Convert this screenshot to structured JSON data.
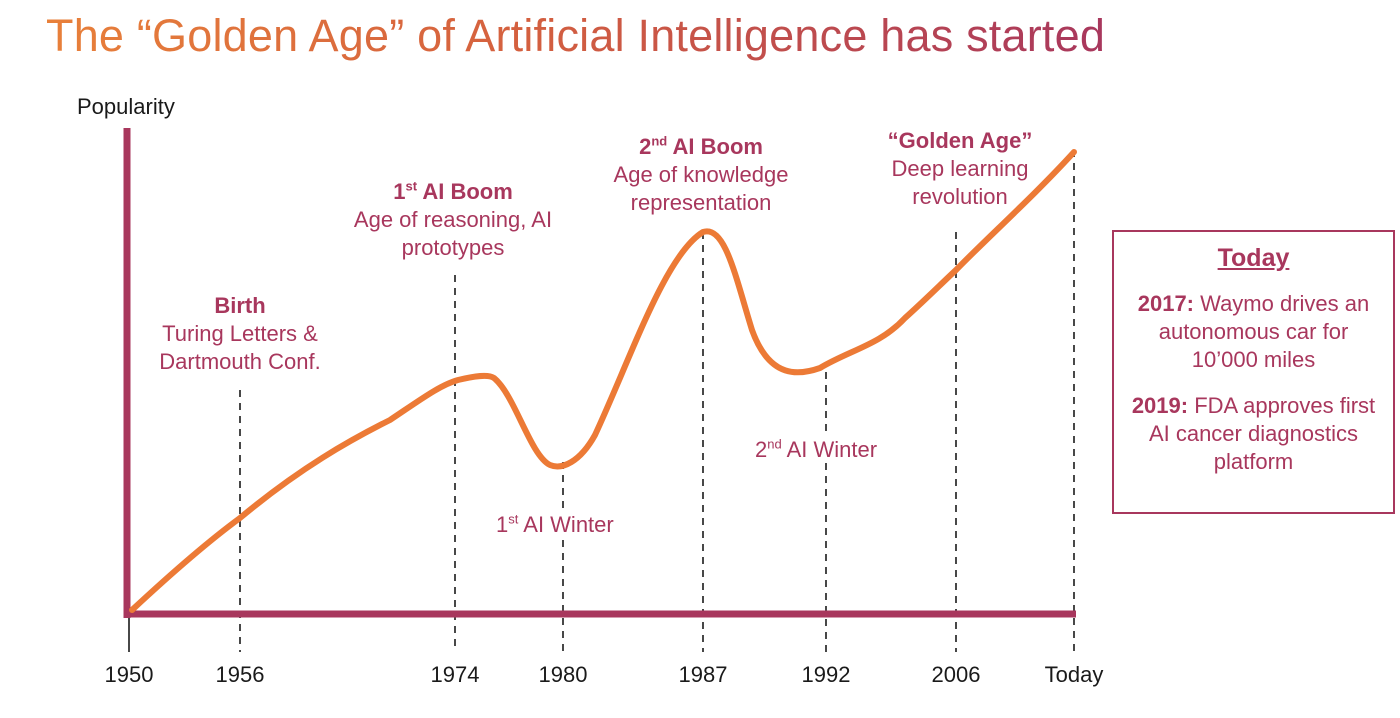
{
  "title": "The “Golden Age” of Artificial Intelligence has started",
  "ylabel": "Popularity",
  "xticks": [
    "1950",
    "1956",
    "1974",
    "1980",
    "1987",
    "1992",
    "2006",
    "Today"
  ],
  "annotations": {
    "birth": {
      "heading": "Birth",
      "line1": "Turing Letters &",
      "line2": "Dartmouth Conf."
    },
    "boom1": {
      "num": "1",
      "sup": "st",
      "heading": " AI Boom",
      "line1": "Age of reasoning, AI",
      "line2": "prototypes"
    },
    "boom2": {
      "num": "2",
      "sup": "nd",
      "heading": " AI Boom",
      "line1": "Age of knowledge",
      "line2": "representation"
    },
    "golden": {
      "heading": "“Golden Age”",
      "line1": "Deep learning",
      "line2": "revolution"
    }
  },
  "winters": {
    "winter1": {
      "num": "1",
      "sup": "st",
      "text": " AI Winter"
    },
    "winter2": {
      "num": "2",
      "sup": "nd",
      "text": " AI Winter"
    }
  },
  "today_box": {
    "heading": "Today",
    "item1_year": "2017:",
    "item1_text": " Waymo drives an autonomous car for 10’000 miles",
    "item2_year": "2019:",
    "item2_text": " FDA approves first AI cancer diagnostics platform"
  },
  "colors": {
    "curve": "#ec7a36",
    "axis": "#a8375d",
    "accent": "#a8375d"
  }
}
